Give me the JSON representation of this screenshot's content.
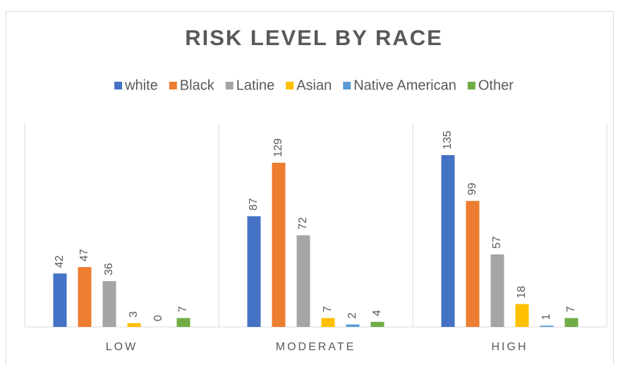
{
  "chart_data": {
    "type": "bar",
    "title": "RISK LEVEL BY RACE",
    "categories": [
      "LOW",
      "MODERATE",
      "HIGH"
    ],
    "series": [
      {
        "name": "white",
        "color": "#4472c4",
        "values": [
          42,
          87,
          135
        ]
      },
      {
        "name": "Black",
        "color": "#ed7d31",
        "values": [
          47,
          129,
          99
        ]
      },
      {
        "name": "Latine",
        "color": "#a5a5a5",
        "values": [
          36,
          72,
          57
        ]
      },
      {
        "name": "Asian",
        "color": "#ffc000",
        "values": [
          3,
          7,
          18
        ]
      },
      {
        "name": "Native American",
        "color": "#5b9bd5",
        "values": [
          0,
          2,
          1
        ]
      },
      {
        "name": "Other",
        "color": "#70ad47",
        "values": [
          7,
          4,
          7
        ]
      }
    ],
    "ylim": [
      0,
      160
    ],
    "legend": "top"
  }
}
